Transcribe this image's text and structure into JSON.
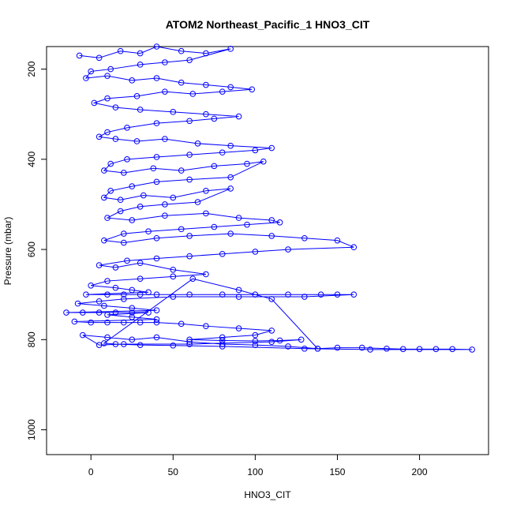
{
  "chart_data": {
    "type": "scatter",
    "title": "ATOM2 Northeast_Pacific_1 HNO3_CIT",
    "xlabel": "HNO3_CIT",
    "ylabel": "Pressure (mbar)",
    "xlim": [
      -27,
      242
    ],
    "ylim": [
      1055,
      150
    ],
    "y_reversed": true,
    "grid": false,
    "legend": "none",
    "x_ticks": [
      0,
      50,
      100,
      150,
      200
    ],
    "y_ticks": [
      200,
      400,
      600,
      800,
      1000
    ],
    "series": [
      {
        "marker": "open-circle",
        "connected": true,
        "color": "#0000ff",
        "points": [
          [
            -7,
            170
          ],
          [
            5,
            175
          ],
          [
            18,
            160
          ],
          [
            30,
            165
          ],
          [
            40,
            150
          ],
          [
            55,
            160
          ],
          [
            70,
            165
          ],
          [
            85,
            155
          ],
          [
            60,
            180
          ],
          [
            45,
            185
          ],
          [
            30,
            190
          ],
          [
            12,
            200
          ],
          [
            0,
            205
          ],
          [
            -3,
            220
          ],
          [
            10,
            215
          ],
          [
            25,
            225
          ],
          [
            40,
            220
          ],
          [
            55,
            230
          ],
          [
            70,
            235
          ],
          [
            85,
            240
          ],
          [
            98,
            245
          ],
          [
            80,
            250
          ],
          [
            62,
            255
          ],
          [
            45,
            250
          ],
          [
            28,
            260
          ],
          [
            10,
            265
          ],
          [
            2,
            275
          ],
          [
            15,
            285
          ],
          [
            30,
            290
          ],
          [
            50,
            295
          ],
          [
            70,
            300
          ],
          [
            90,
            305
          ],
          [
            75,
            310
          ],
          [
            60,
            315
          ],
          [
            40,
            320
          ],
          [
            22,
            330
          ],
          [
            10,
            340
          ],
          [
            5,
            350
          ],
          [
            15,
            355
          ],
          [
            28,
            360
          ],
          [
            45,
            355
          ],
          [
            65,
            365
          ],
          [
            85,
            370
          ],
          [
            110,
            375
          ],
          [
            100,
            380
          ],
          [
            80,
            385
          ],
          [
            60,
            390
          ],
          [
            40,
            395
          ],
          [
            22,
            400
          ],
          [
            12,
            410
          ],
          [
            8,
            425
          ],
          [
            20,
            430
          ],
          [
            38,
            420
          ],
          [
            55,
            425
          ],
          [
            75,
            415
          ],
          [
            95,
            410
          ],
          [
            105,
            405
          ],
          [
            85,
            440
          ],
          [
            60,
            445
          ],
          [
            40,
            450
          ],
          [
            25,
            460
          ],
          [
            12,
            470
          ],
          [
            8,
            485
          ],
          [
            18,
            490
          ],
          [
            32,
            480
          ],
          [
            50,
            485
          ],
          [
            70,
            470
          ],
          [
            85,
            465
          ],
          [
            65,
            495
          ],
          [
            45,
            500
          ],
          [
            30,
            505
          ],
          [
            18,
            515
          ],
          [
            10,
            530
          ],
          [
            25,
            535
          ],
          [
            45,
            525
          ],
          [
            70,
            520
          ],
          [
            90,
            530
          ],
          [
            110,
            535
          ],
          [
            115,
            540
          ],
          [
            95,
            545
          ],
          [
            75,
            550
          ],
          [
            55,
            555
          ],
          [
            35,
            560
          ],
          [
            20,
            565
          ],
          [
            8,
            580
          ],
          [
            20,
            585
          ],
          [
            40,
            575
          ],
          [
            60,
            570
          ],
          [
            85,
            565
          ],
          [
            110,
            570
          ],
          [
            130,
            575
          ],
          [
            150,
            580
          ],
          [
            160,
            595
          ],
          [
            120,
            600
          ],
          [
            100,
            605
          ],
          [
            80,
            610
          ],
          [
            60,
            615
          ],
          [
            40,
            620
          ],
          [
            22,
            625
          ],
          [
            5,
            635
          ],
          [
            15,
            640
          ],
          [
            30,
            630
          ],
          [
            50,
            645
          ],
          [
            70,
            655
          ],
          [
            50,
            660
          ],
          [
            30,
            665
          ],
          [
            10,
            670
          ],
          [
            0,
            680
          ],
          [
            15,
            685
          ],
          [
            25,
            690
          ],
          [
            35,
            695
          ],
          [
            -3,
            700
          ],
          [
            10,
            700
          ],
          [
            20,
            700
          ],
          [
            30,
            700
          ],
          [
            40,
            700
          ],
          [
            60,
            700
          ],
          [
            80,
            700
          ],
          [
            100,
            700
          ],
          [
            120,
            700
          ],
          [
            140,
            700
          ],
          [
            150,
            700
          ],
          [
            160,
            700
          ],
          [
            130,
            705
          ],
          [
            90,
            705
          ],
          [
            50,
            705
          ],
          [
            20,
            710
          ],
          [
            5,
            715
          ],
          [
            -8,
            720
          ],
          [
            8,
            725
          ],
          [
            25,
            730
          ],
          [
            40,
            735
          ],
          [
            -15,
            740
          ],
          [
            -5,
            740
          ],
          [
            5,
            740
          ],
          [
            15,
            740
          ],
          [
            25,
            740
          ],
          [
            35,
            740
          ],
          [
            10,
            745
          ],
          [
            25,
            750
          ],
          [
            40,
            755
          ],
          [
            -10,
            760
          ],
          [
            0,
            762
          ],
          [
            10,
            762
          ],
          [
            20,
            762
          ],
          [
            30,
            762
          ],
          [
            40,
            762
          ],
          [
            55,
            765
          ],
          [
            70,
            770
          ],
          [
            90,
            775
          ],
          [
            110,
            780
          ],
          [
            100,
            790
          ],
          [
            80,
            795
          ],
          [
            60,
            800
          ],
          [
            80,
            802
          ],
          [
            100,
            803
          ],
          [
            115,
            802
          ],
          [
            128,
            800
          ],
          [
            110,
            805
          ],
          [
            60,
            810
          ],
          [
            20,
            810
          ],
          [
            5,
            812
          ],
          [
            -5,
            790
          ],
          [
            10,
            795
          ],
          [
            25,
            800
          ],
          [
            40,
            795
          ],
          [
            60,
            805
          ],
          [
            80,
            810
          ],
          [
            100,
            812
          ],
          [
            120,
            815
          ],
          [
            138,
            820
          ],
          [
            150,
            818
          ],
          [
            165,
            818
          ],
          [
            180,
            820
          ],
          [
            190,
            821
          ],
          [
            200,
            821
          ],
          [
            210,
            821
          ],
          [
            220,
            821
          ],
          [
            232,
            822
          ],
          [
            170,
            822
          ],
          [
            130,
            820
          ],
          [
            80,
            815
          ],
          [
            50,
            813
          ],
          [
            30,
            812
          ],
          [
            15,
            810
          ],
          [
            8,
            808
          ],
          [
            62,
            665
          ],
          [
            90,
            690
          ],
          [
            110,
            710
          ],
          [
            138,
            820
          ]
        ]
      }
    ]
  }
}
